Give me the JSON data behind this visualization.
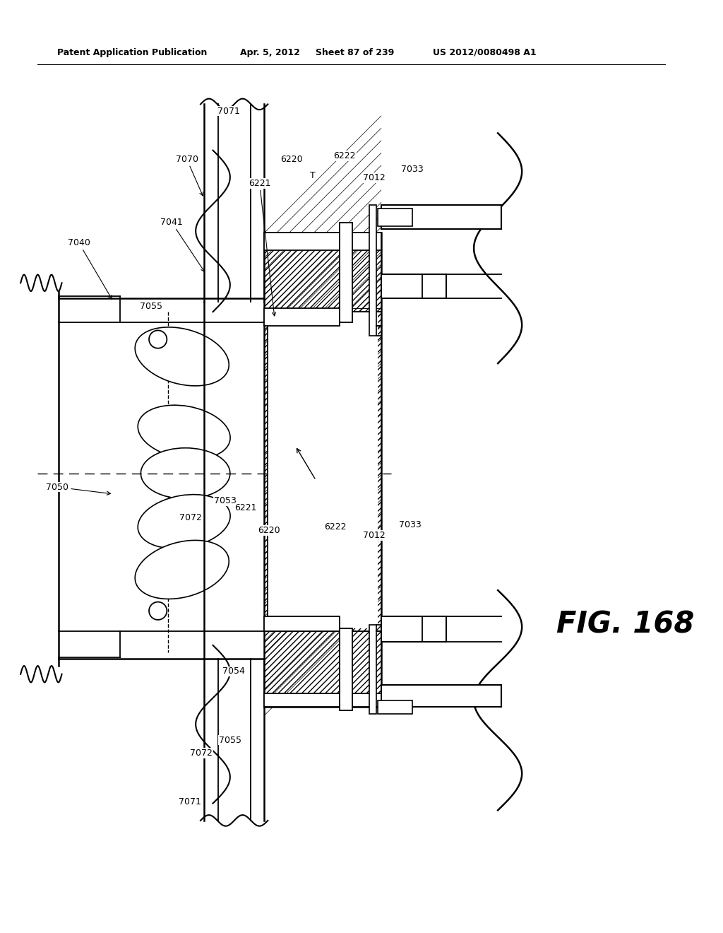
{
  "header_left": "Patent Application Publication",
  "header_mid1": "Apr. 5, 2012",
  "header_mid2": "Sheet 87 of 239",
  "header_right": "US 2012/0080498 A1",
  "fig_label": "FIG. 168",
  "bg": "#ffffff",
  "lc": "#000000"
}
